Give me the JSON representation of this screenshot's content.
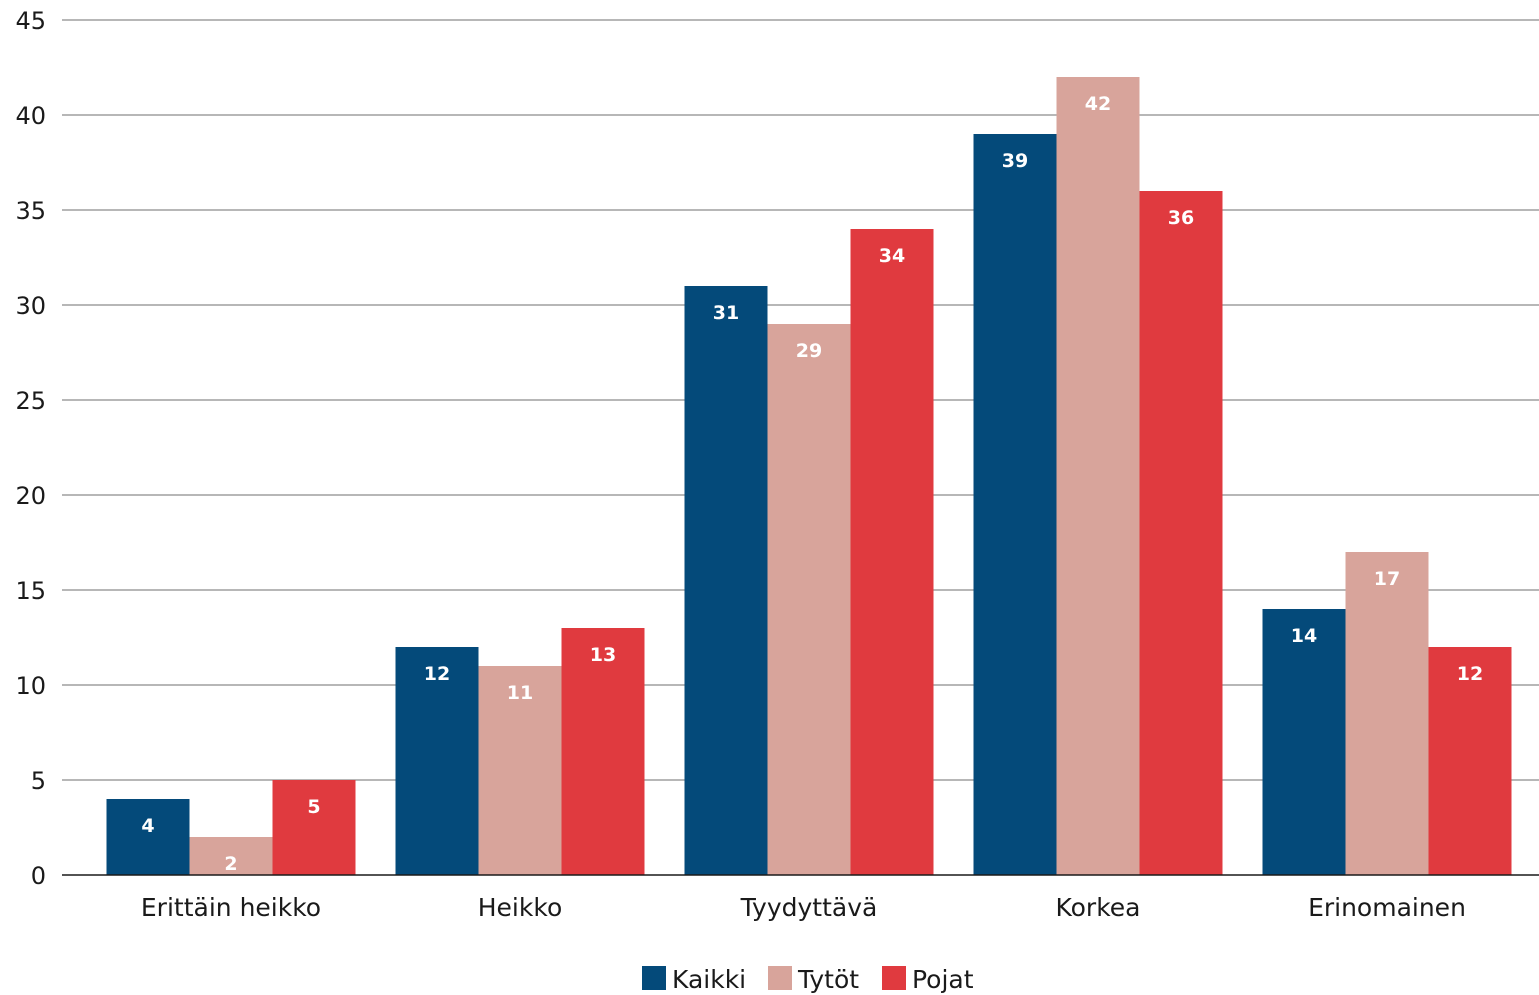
{
  "chart_data": {
    "type": "bar",
    "title": "",
    "xlabel": "",
    "ylabel": "",
    "categories": [
      "Erittäin heikko",
      "Heikko",
      "Tyydyttävä",
      "Korkea",
      "Erinomainen"
    ],
    "series": [
      {
        "name": "Kaikki",
        "color": "#044a7a",
        "values": [
          4,
          12,
          31,
          39,
          14
        ]
      },
      {
        "name": "Tytöt",
        "color": "#d8a49b",
        "values": [
          2,
          11,
          29,
          42,
          17
        ]
      },
      {
        "name": "Pojat",
        "color": "#e03a3f",
        "values": [
          5,
          13,
          34,
          36,
          12
        ]
      }
    ],
    "ylim": [
      0,
      45
    ],
    "yticks": [
      0,
      5,
      10,
      15,
      20,
      25,
      30,
      35,
      40,
      45
    ],
    "grid": true,
    "legend_position": "bottom-center",
    "data_labels": true
  }
}
